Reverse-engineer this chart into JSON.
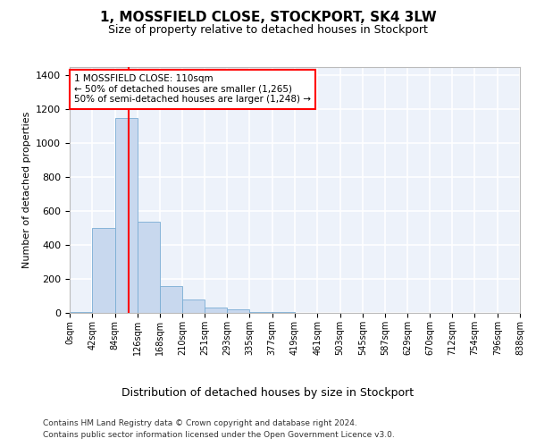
{
  "title": "1, MOSSFIELD CLOSE, STOCKPORT, SK4 3LW",
  "subtitle": "Size of property relative to detached houses in Stockport",
  "xlabel": "Distribution of detached houses by size in Stockport",
  "ylabel": "Number of detached properties",
  "footer_line1": "Contains HM Land Registry data © Crown copyright and database right 2024.",
  "footer_line2": "Contains public sector information licensed under the Open Government Licence v3.0.",
  "bar_edges": [
    0,
    42,
    84,
    126,
    168,
    210,
    251,
    293,
    335,
    377,
    419,
    461,
    503,
    545,
    587,
    629,
    670,
    712,
    754,
    796,
    838
  ],
  "bar_heights": [
    5,
    500,
    1150,
    540,
    160,
    80,
    33,
    20,
    5,
    3,
    0,
    0,
    0,
    0,
    0,
    0,
    0,
    0,
    0,
    0
  ],
  "bar_color": "#c8d8ee",
  "bar_edgecolor": "#7aadd4",
  "property_line_x": 110,
  "property_line_color": "red",
  "annotation_text": "1 MOSSFIELD CLOSE: 110sqm\n← 50% of detached houses are smaller (1,265)\n50% of semi-detached houses are larger (1,248) →",
  "annotation_box_color": "white",
  "annotation_box_edgecolor": "red",
  "ylim": [
    0,
    1450
  ],
  "yticks": [
    0,
    200,
    400,
    600,
    800,
    1000,
    1200,
    1400
  ],
  "background_color": "#edf2fa",
  "grid_color": "white",
  "tick_labels": [
    "0sqm",
    "42sqm",
    "84sqm",
    "126sqm",
    "168sqm",
    "210sqm",
    "251sqm",
    "293sqm",
    "335sqm",
    "377sqm",
    "419sqm",
    "461sqm",
    "503sqm",
    "545sqm",
    "587sqm",
    "629sqm",
    "670sqm",
    "712sqm",
    "754sqm",
    "796sqm",
    "838sqm"
  ]
}
